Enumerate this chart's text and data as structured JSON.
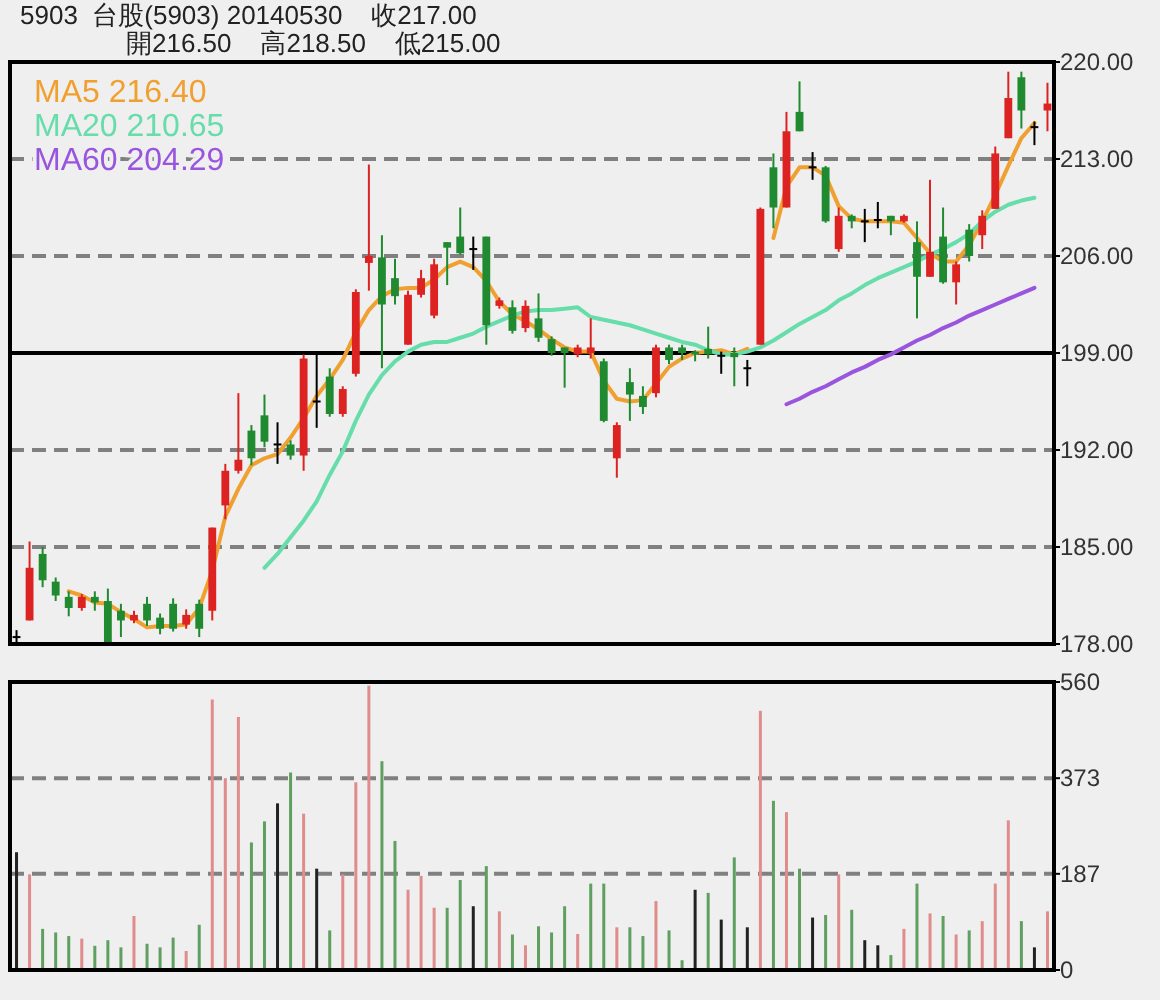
{
  "chart_data": [
    {
      "type": "candlestick",
      "title": "5903  台股(5903) 20140530    收217.00",
      "subtitle": "開216.50    高218.50    低215.00",
      "categories": [
        null,
        null,
        null,
        null,
        null,
        null,
        null,
        null,
        null,
        null,
        null,
        null,
        null,
        null,
        null,
        null,
        null,
        null,
        null,
        null,
        null,
        null,
        null,
        null,
        null,
        null,
        null,
        null,
        null,
        null,
        null,
        null,
        null,
        null,
        null,
        null,
        null,
        null,
        null,
        null,
        null,
        null,
        null,
        null,
        null,
        null,
        null,
        null,
        null,
        null,
        null,
        null,
        null,
        null,
        null,
        null,
        null,
        null,
        null,
        null,
        null,
        null,
        null,
        null,
        null,
        null,
        null,
        null,
        null,
        null,
        null,
        null,
        null,
        null,
        null,
        null,
        null,
        null,
        null,
        null
      ],
      "ohlc": [
        [
          178.5,
          179,
          178,
          178.5
        ],
        [
          179.7,
          185.4,
          179.7,
          183.5
        ],
        [
          184.5,
          185,
          182.1,
          182.6
        ],
        [
          182.5,
          182.8,
          181.1,
          181.5
        ],
        [
          181.4,
          181.8,
          180,
          180.6
        ],
        [
          180.6,
          181.6,
          180.4,
          181.4
        ],
        [
          181.4,
          181.8,
          180.4,
          181
        ],
        [
          181.1,
          182,
          178,
          178
        ],
        [
          180.4,
          180.9,
          178.5,
          179.7
        ],
        [
          179.7,
          180.4,
          179.5,
          180.1
        ],
        [
          180.9,
          181.4,
          179.3,
          179.7
        ],
        [
          179.9,
          180.2,
          178.7,
          179.1
        ],
        [
          180.9,
          181.3,
          178.9,
          179.1
        ],
        [
          179.4,
          180.5,
          179.1,
          180.1
        ],
        [
          180.9,
          181.2,
          178.5,
          179.1
        ],
        [
          180.4,
          186.4,
          179.7,
          186.4
        ],
        [
          188,
          191,
          187,
          190.5
        ],
        [
          190.5,
          196.1,
          190.3,
          191.3
        ],
        [
          193.4,
          193.8,
          190.9,
          191.4
        ],
        [
          194.5,
          196,
          192.2,
          192.6
        ],
        [
          192.4,
          194,
          191,
          192.4
        ],
        [
          192.4,
          192.7,
          191.3,
          191.6
        ],
        [
          191.6,
          198.9,
          190.5,
          198.6
        ],
        [
          195.5,
          198.9,
          193.6,
          195.5
        ],
        [
          197.3,
          197.9,
          194.4,
          194.6
        ],
        [
          194.6,
          196.6,
          194.4,
          196.4
        ],
        [
          197.5,
          203.6,
          197.3,
          203.4
        ],
        [
          205.5,
          212.6,
          203.5,
          206
        ],
        [
          205.9,
          207.5,
          197.9,
          202.5
        ],
        [
          204.4,
          205.8,
          202.5,
          203.1
        ],
        [
          199.6,
          203.5,
          199.6,
          203.2
        ],
        [
          203.2,
          205,
          203,
          204.4
        ],
        [
          201.7,
          205.8,
          201.5,
          205.4
        ],
        [
          207,
          207,
          203.9,
          206.6
        ],
        [
          207.4,
          209.5,
          206.1,
          206.2
        ],
        [
          206.5,
          207.4,
          205,
          206.5
        ],
        [
          207.4,
          207.4,
          199.6,
          201
        ],
        [
          202.4,
          203,
          202.2,
          202.8
        ],
        [
          202.3,
          202.8,
          200.4,
          200.6
        ],
        [
          200.8,
          202.8,
          200.5,
          202.4
        ],
        [
          201.5,
          203.3,
          199.8,
          200.1
        ],
        [
          200,
          200.2,
          198.8,
          199
        ],
        [
          199.4,
          199.4,
          196.5,
          199
        ],
        [
          198.9,
          199.6,
          198.7,
          199.4
        ],
        [
          199,
          201.5,
          198.6,
          199.4
        ],
        [
          198.4,
          198.6,
          194,
          194.1
        ],
        [
          191.4,
          194,
          190,
          193.8
        ],
        [
          196.9,
          197.9,
          194.1,
          196
        ],
        [
          195.9,
          196.6,
          194.6,
          195.1
        ],
        [
          196.1,
          199.6,
          195.8,
          199.4
        ],
        [
          199.4,
          199.6,
          198.2,
          198.5
        ],
        [
          199.4,
          199.6,
          198.5,
          199
        ],
        [
          199.1,
          199.2,
          198.4,
          198.9
        ],
        [
          199.3,
          200.9,
          198.6,
          198.9
        ],
        [
          198.8,
          199.1,
          197.5,
          198.8
        ],
        [
          199,
          199.4,
          196.6,
          198.7
        ],
        [
          197.9,
          198.5,
          196.6,
          197.9
        ],
        [
          199.6,
          209.5,
          199.6,
          209.4
        ],
        [
          212.4,
          213.4,
          208,
          209.5
        ],
        [
          209.5,
          216.4,
          209.5,
          215
        ],
        [
          216.4,
          218.6,
          215,
          215
        ],
        [
          212.4,
          213.5,
          211.5,
          212.4
        ],
        [
          212.4,
          212.5,
          208.4,
          208.5
        ],
        [
          206.5,
          209.5,
          206.3,
          208.9
        ],
        [
          208.9,
          209,
          208,
          208.5
        ],
        [
          208.5,
          209.4,
          207,
          208.5
        ],
        [
          208.6,
          209.9,
          208,
          208.6
        ],
        [
          208.9,
          208.9,
          207.5,
          208.5
        ],
        [
          208.5,
          209,
          208.4,
          208.9
        ],
        [
          207,
          208.5,
          201.5,
          204.5
        ],
        [
          204.5,
          211.5,
          204.5,
          206.3
        ],
        [
          207.4,
          209.5,
          204,
          204.1
        ],
        [
          204.1,
          205.6,
          202.5,
          205.4
        ],
        [
          207.9,
          208.3,
          205.6,
          206
        ],
        [
          207.5,
          209.3,
          206.5,
          208.9
        ],
        [
          209.4,
          213.9,
          209.4,
          213.4
        ],
        [
          214.5,
          219.3,
          214.5,
          217.4
        ],
        [
          218.9,
          219.3,
          215.2,
          216.5
        ],
        [
          215.3,
          215.7,
          214,
          215.3
        ],
        [
          216.5,
          218.5,
          215,
          217
        ]
      ],
      "colors": [
        "#000000",
        "#dd2222",
        "#1f8a2f",
        "#1f8a2f",
        "#1f8a2f",
        "#dd2222",
        "#1f8a2f",
        "#1f8a2f",
        "#1f8a2f",
        "#dd2222",
        "#1f8a2f",
        "#1f8a2f",
        "#1f8a2f",
        "#dd2222",
        "#1f8a2f",
        "#dd2222",
        "#dd2222",
        "#dd2222",
        "#1f8a2f",
        "#1f8a2f",
        "#000000",
        "#1f8a2f",
        "#dd2222",
        "#000000",
        "#1f8a2f",
        "#dd2222",
        "#dd2222",
        "#dd2222",
        "#1f8a2f",
        "#1f8a2f",
        "#dd2222",
        "#dd2222",
        "#dd2222",
        "#1f8a2f",
        "#1f8a2f",
        "#000000",
        "#1f8a2f",
        "#dd2222",
        "#1f8a2f",
        "#dd2222",
        "#1f8a2f",
        "#1f8a2f",
        "#1f8a2f",
        "#dd2222",
        "#dd2222",
        "#1f8a2f",
        "#dd2222",
        "#1f8a2f",
        "#1f8a2f",
        "#dd2222",
        "#1f8a2f",
        "#1f8a2f",
        "#1f8a2f",
        "#1f8a2f",
        "#000000",
        "#1f8a2f",
        "#000000",
        "#dd2222",
        "#1f8a2f",
        "#dd2222",
        "#1f8a2f",
        "#000000",
        "#1f8a2f",
        "#dd2222",
        "#1f8a2f",
        "#000000",
        "#000000",
        "#1f8a2f",
        "#dd2222",
        "#1f8a2f",
        "#dd2222",
        "#1f8a2f",
        "#dd2222",
        "#1f8a2f",
        "#dd2222",
        "#dd2222",
        "#dd2222",
        "#1f8a2f",
        "#000000",
        "#dd2222"
      ],
      "series": [
        {
          "name": "MA5 216.40",
          "type": "line",
          "color": "#f0a030",
          "values": [
            null,
            null,
            null,
            null,
            181.8,
            181.5,
            181,
            180.9,
            180.3,
            179.8,
            179.2,
            179.3,
            179.3,
            179.4,
            180.6,
            183.3,
            187.2,
            189.2,
            190.9,
            191.4,
            191.7,
            192.9,
            194.3,
            195.9,
            197.1,
            198.5,
            200.5,
            202.1,
            203.1,
            203.6,
            203.7,
            203.7,
            204.3,
            205.2,
            205.6,
            205.2,
            204.2,
            202.7,
            201.8,
            201.3,
            200.7,
            200,
            199.4,
            199.1,
            199.1,
            197,
            195.7,
            195.5,
            195.6,
            196.8,
            198,
            198.6,
            199,
            199.1,
            199.2,
            198.9,
            199.3,
            null,
            207.3,
            211,
            212.4,
            212.4,
            211.8,
            209.6,
            208.7,
            208.5,
            208.5,
            208.5,
            208.4,
            207.3,
            206.2,
            205.6,
            205.6,
            206.8,
            208.5,
            210.4,
            212.5,
            214.5,
            215.6,
            null
          ]
        },
        {
          "name": "MA20 210.65",
          "type": "line",
          "color": "#66ddaa",
          "values": [
            null,
            null,
            null,
            null,
            null,
            null,
            null,
            null,
            null,
            null,
            null,
            null,
            null,
            null,
            null,
            null,
            null,
            null,
            null,
            183.5,
            184.5,
            185.7,
            186.9,
            188.3,
            190.2,
            191.9,
            194.1,
            196,
            197.4,
            198.4,
            199.1,
            199.6,
            199.8,
            199.8,
            200.1,
            200.4,
            200.9,
            201.3,
            201.7,
            202,
            202.1,
            202.1,
            202.2,
            202.3,
            201.6,
            201.4,
            201.2,
            201,
            200.7,
            200.4,
            200.1,
            199.8,
            199.6,
            199.2,
            198.9,
            198.9,
            199.1,
            199.4,
            199.9,
            200.5,
            201.1,
            201.6,
            202.1,
            202.8,
            203.3,
            203.9,
            204.4,
            204.8,
            205.2,
            205.6,
            206.1,
            206.5,
            207,
            207.6,
            208.5,
            209.2,
            209.7,
            210,
            210.2,
            null
          ]
        },
        {
          "name": "MA60 204.29",
          "type": "line",
          "color": "#9955dd",
          "values": [
            null,
            null,
            null,
            null,
            null,
            null,
            null,
            null,
            null,
            null,
            null,
            null,
            null,
            null,
            null,
            null,
            null,
            null,
            null,
            null,
            null,
            null,
            null,
            null,
            null,
            null,
            null,
            null,
            null,
            null,
            null,
            null,
            null,
            null,
            null,
            null,
            null,
            null,
            null,
            null,
            null,
            null,
            null,
            null,
            null,
            null,
            null,
            null,
            null,
            null,
            null,
            null,
            null,
            null,
            null,
            null,
            null,
            null,
            null,
            195.3,
            195.7,
            196.2,
            196.6,
            197.1,
            197.6,
            198,
            198.5,
            198.9,
            199.4,
            199.9,
            200.3,
            200.8,
            201.2,
            201.7,
            202.1,
            202.5,
            202.9,
            203.3,
            203.7,
            null
          ]
        }
      ],
      "ylim": [
        178,
        220
      ],
      "yticks": [
        {
          "value": 178,
          "label": "178.00"
        },
        {
          "value": 185,
          "label": "185.00"
        },
        {
          "value": 192,
          "label": "192.00"
        },
        {
          "value": 199,
          "label": "199.00"
        },
        {
          "value": 206,
          "label": "206.00"
        },
        {
          "value": 213,
          "label": "213.00"
        },
        {
          "value": 220,
          "label": "220.00"
        }
      ],
      "grid": "y",
      "legend": "top left",
      "ref_lines": [
        {
          "axis": "y",
          "value": 199,
          "color": "#000000"
        }
      ]
    },
    {
      "type": "bar",
      "categories": [
        null,
        null,
        null,
        null,
        null,
        null,
        null,
        null,
        null,
        null,
        null,
        null,
        null,
        null,
        null,
        null,
        null,
        null,
        null,
        null,
        null,
        null,
        null,
        null,
        null,
        null,
        null,
        null,
        null,
        null,
        null,
        null,
        null,
        null,
        null,
        null,
        null,
        null,
        null,
        null,
        null,
        null,
        null,
        null,
        null,
        null,
        null,
        null,
        null,
        null,
        null,
        null,
        null,
        null,
        null,
        null,
        null,
        null,
        null,
        null,
        null,
        null,
        null,
        null,
        null,
        null,
        null,
        null,
        null,
        null,
        null,
        null,
        null,
        null,
        null,
        null,
        null,
        null,
        null,
        null
      ],
      "values": [
        229,
        186,
        80,
        73,
        66,
        61,
        47,
        58,
        44,
        105,
        51,
        44,
        63,
        37,
        88,
        526,
        373,
        492,
        248,
        289,
        324,
        384,
        304,
        197,
        77,
        186,
        365,
        553,
        406,
        251,
        156,
        183,
        121,
        121,
        175,
        124,
        202,
        114,
        69,
        48,
        85,
        73,
        124,
        70,
        168,
        168,
        83,
        83,
        66,
        134,
        77,
        19,
        156,
        150,
        98,
        219,
        83,
        504,
        329,
        307,
        197,
        102,
        107,
        186,
        117,
        58,
        48,
        29,
        80,
        168,
        110,
        105,
        69,
        77,
        95,
        168,
        291,
        95,
        44,
        114
      ],
      "colors": [
        "#222222",
        "#e08c8c",
        "#5f9f5f",
        "#5f9f5f",
        "#5f9f5f",
        "#e08c8c",
        "#5f9f5f",
        "#5f9f5f",
        "#5f9f5f",
        "#e08c8c",
        "#5f9f5f",
        "#5f9f5f",
        "#5f9f5f",
        "#e08c8c",
        "#5f9f5f",
        "#e08c8c",
        "#e08c8c",
        "#e08c8c",
        "#5f9f5f",
        "#5f9f5f",
        "#222222",
        "#5f9f5f",
        "#e08c8c",
        "#222222",
        "#5f9f5f",
        "#e08c8c",
        "#e08c8c",
        "#e08c8c",
        "#5f9f5f",
        "#5f9f5f",
        "#e08c8c",
        "#e08c8c",
        "#e08c8c",
        "#5f9f5f",
        "#5f9f5f",
        "#222222",
        "#5f9f5f",
        "#e08c8c",
        "#5f9f5f",
        "#e08c8c",
        "#5f9f5f",
        "#5f9f5f",
        "#5f9f5f",
        "#e08c8c",
        "#5f9f5f",
        "#5f9f5f",
        "#e08c8c",
        "#5f9f5f",
        "#5f9f5f",
        "#e08c8c",
        "#5f9f5f",
        "#5f9f5f",
        "#222222",
        "#5f9f5f",
        "#222222",
        "#5f9f5f",
        "#222222",
        "#e08c8c",
        "#5f9f5f",
        "#e08c8c",
        "#5f9f5f",
        "#222222",
        "#5f9f5f",
        "#e08c8c",
        "#5f9f5f",
        "#222222",
        "#222222",
        "#5f9f5f",
        "#e08c8c",
        "#5f9f5f",
        "#e08c8c",
        "#5f9f5f",
        "#e08c8c",
        "#5f9f5f",
        "#e08c8c",
        "#e08c8c",
        "#e08c8c",
        "#5f9f5f",
        "#222222",
        "#e08c8c"
      ],
      "ylim": [
        0,
        560
      ],
      "yticks": [
        0,
        187,
        373,
        560
      ],
      "grid": "y"
    }
  ]
}
